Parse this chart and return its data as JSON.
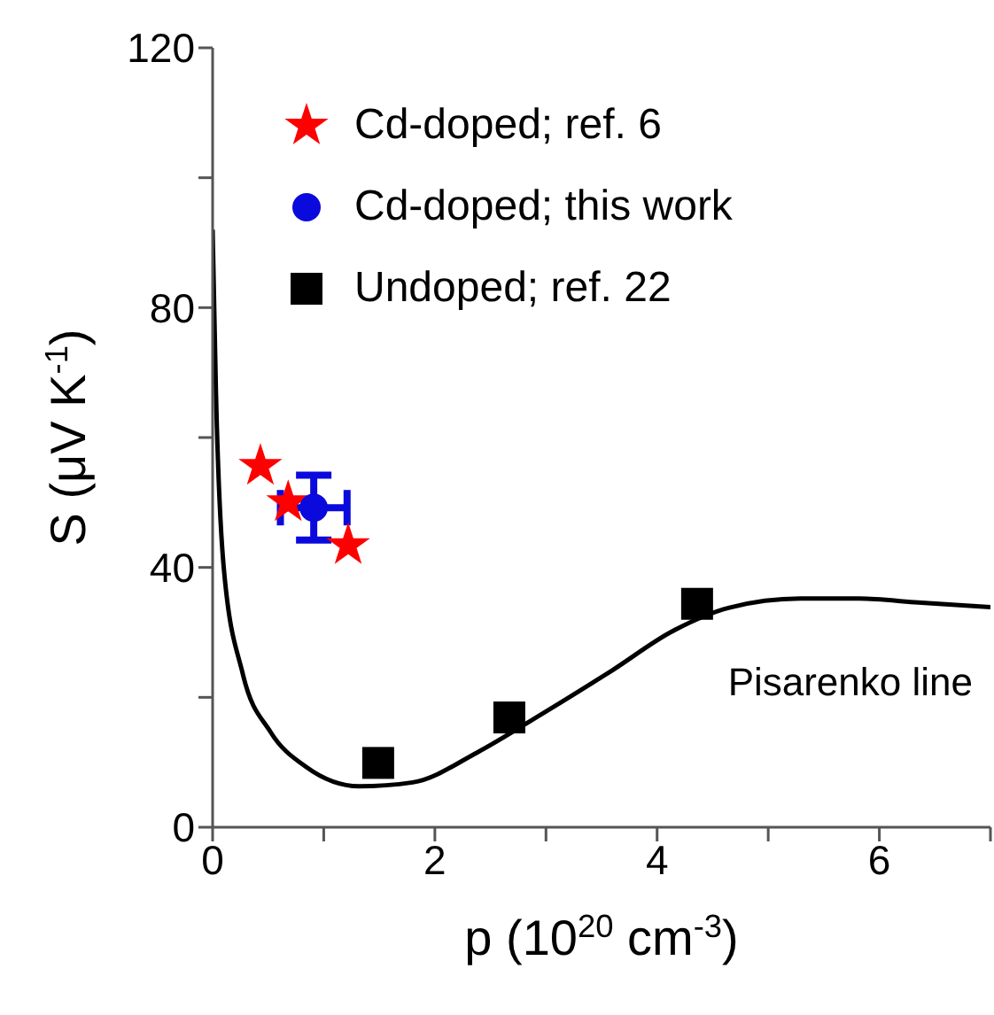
{
  "chart_data": {
    "type": "scatter",
    "xlabel": "p (10$^{20}$ cm$^{-3}$)",
    "ylabel": "S (μV K$^{-1}$)",
    "xlim": [
      0,
      7
    ],
    "ylim": [
      0,
      120
    ],
    "xticks": [
      0,
      {
        "value": 1,
        "label": null
      },
      2,
      {
        "value": 3,
        "label": null
      },
      4,
      {
        "value": 5,
        "label": null
      },
      6,
      {
        "value": 7,
        "label": null
      }
    ],
    "yticks": [
      0,
      {
        "value": 20,
        "label": null
      },
      40,
      {
        "value": 60,
        "label": null
      },
      80,
      {
        "value": 100,
        "label": null
      },
      120
    ],
    "legend": "top left",
    "grid": false,
    "series": [
      {
        "name": "Cd-doped; ref. 6",
        "color": "#ff0000",
        "marker": "star",
        "x": [
          0.43,
          0.68,
          1.22
        ],
        "values": [
          55.6,
          50,
          43.4
        ]
      },
      {
        "name": "Cd-doped; this work",
        "color": "#0a0adc",
        "marker": "circle",
        "x": [
          0.91
        ],
        "values": [
          49.2
        ],
        "errors": [
          5
        ],
        "xerrors": [
          0.3
        ]
      },
      {
        "name": "Undoped; ref. 22",
        "color": "#000000",
        "marker": "square",
        "x": [
          1.49,
          2.67,
          4.36
        ],
        "values": [
          9.9,
          16.9,
          34.4
        ]
      },
      {
        "name": "Pisarenko line",
        "type": "line",
        "color": "#000000",
        "marker": "none",
        "line_style": "solid",
        "x": [
          0,
          0.03,
          0.1,
          0.27,
          0.52,
          0.84,
          1.32,
          1.8,
          2.38,
          2.96,
          3.6,
          4.13,
          4.65,
          5.29,
          5.82,
          6.35,
          7
        ],
        "values": [
          92,
          67,
          40,
          23.7,
          14.7,
          9.3,
          6.3,
          6.9,
          11.5,
          17.4,
          24.2,
          30.1,
          33.8,
          35.2,
          35.2,
          34.6,
          33.9
        ]
      }
    ]
  }
}
